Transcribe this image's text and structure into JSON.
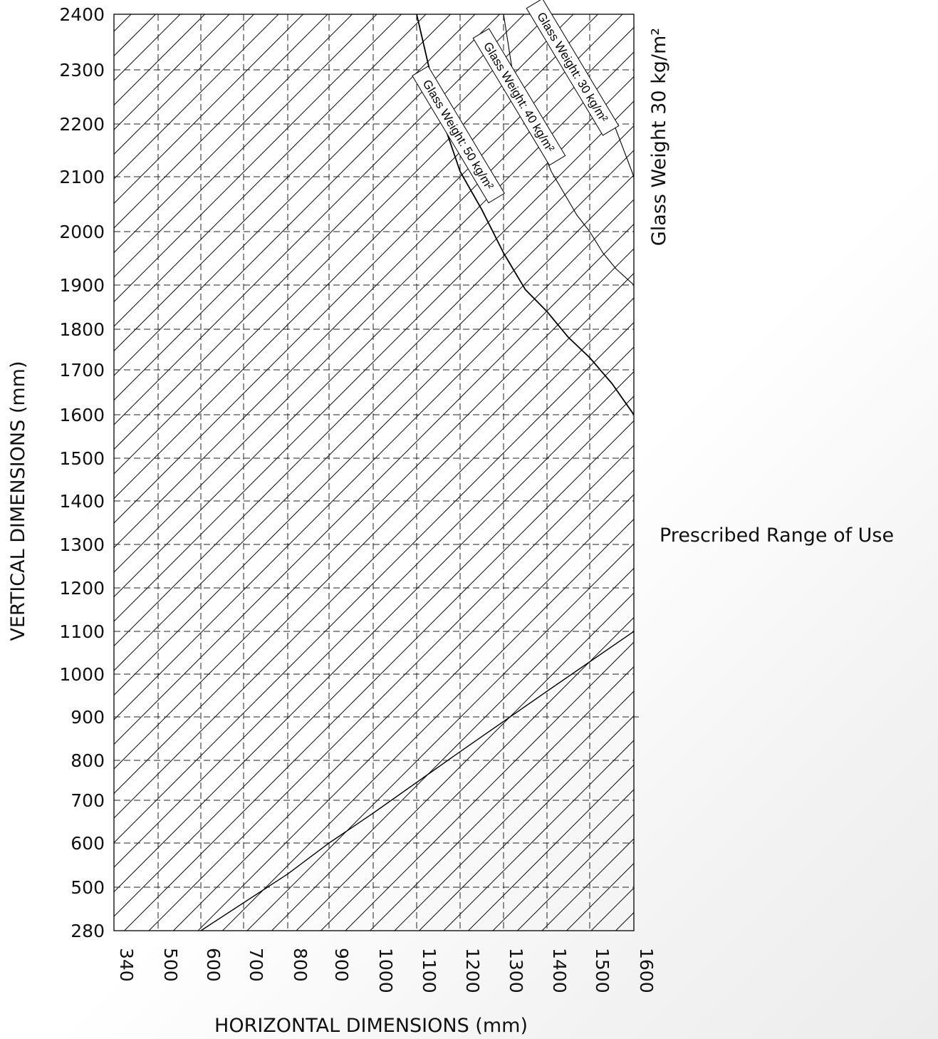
{
  "chart_data": {
    "type": "area",
    "xlabel": "HORIZONTAL DIMENSIONS (mm)",
    "ylabel": "VERTICAL DIMENSIONS (mm)",
    "x_ticks": [
      340,
      500,
      600,
      700,
      800,
      900,
      1000,
      1100,
      1200,
      1300,
      1400,
      1500,
      1600
    ],
    "y_ticks": [
      280,
      500,
      600,
      700,
      800,
      900,
      1000,
      1100,
      1200,
      1300,
      1400,
      1500,
      1600,
      1700,
      1800,
      1900,
      2000,
      2100,
      2200,
      2300,
      2400
    ],
    "xlim": [
      340,
      1600
    ],
    "ylim": [
      280,
      2400
    ],
    "grid": true,
    "region_label": "Prescribed Range of Use",
    "side_label": "Glass Weight 30 kg/m²",
    "lower_boundary": {
      "x": [
        600,
        800,
        900,
        1000,
        1200,
        1400,
        1600
      ],
      "y": [
        280,
        530,
        600,
        670,
        820,
        960,
        1100
      ]
    },
    "series": [
      {
        "name": "Glass Weight: 50 kg/m²",
        "x": [
          1100,
          1150,
          1200,
          1250,
          1300,
          1350,
          1400,
          1450,
          1500,
          1550,
          1600
        ],
        "y": [
          2400,
          2230,
          2110,
          2040,
          1960,
          1890,
          1840,
          1780,
          1730,
          1670,
          1600
        ]
      },
      {
        "name": "Glass Weight: 40 kg/m²",
        "x": [
          1300,
          1320,
          1350,
          1380,
          1410,
          1440,
          1470,
          1500,
          1530,
          1560,
          1600
        ],
        "y": [
          2400,
          2300,
          2220,
          2170,
          2110,
          2070,
          2030,
          2000,
          1960,
          1930,
          1900
        ]
      },
      {
        "name": "Glass Weight: 30 kg/m²",
        "x": [
          1400,
          1450,
          1500,
          1550,
          1600
        ],
        "y": [
          2400,
          2330,
          2270,
          2210,
          2100
        ]
      }
    ]
  }
}
